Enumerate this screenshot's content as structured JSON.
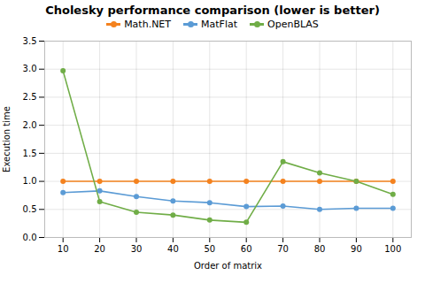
{
  "chart_data": {
    "type": "line",
    "title": "Cholesky performance comparison (lower is better)",
    "xlabel": "Order of matrix",
    "ylabel": "Execution time",
    "x": [
      10,
      20,
      30,
      40,
      50,
      60,
      70,
      80,
      90,
      100
    ],
    "series": [
      {
        "name": "Math.NET",
        "color": "#f4821e",
        "marker": "circle",
        "values": [
          1.0,
          1.0,
          1.0,
          1.0,
          1.0,
          1.0,
          1.0,
          1.0,
          1.0,
          1.0
        ]
      },
      {
        "name": "MatFlat",
        "color": "#5b9bd5",
        "marker": "circle",
        "values": [
          0.8,
          0.83,
          0.73,
          0.65,
          0.62,
          0.55,
          0.56,
          0.5,
          0.52,
          0.52
        ]
      },
      {
        "name": "OpenBLAS",
        "color": "#70ad47",
        "marker": "circle",
        "values": [
          2.97,
          0.64,
          0.45,
          0.4,
          0.31,
          0.27,
          1.35,
          1.15,
          1.0,
          0.77
        ]
      }
    ],
    "xlim": [
      5,
      105
    ],
    "xticks": [
      10,
      20,
      30,
      40,
      50,
      60,
      70,
      80,
      90,
      100
    ],
    "ylim": [
      0,
      3.5
    ],
    "yticks": [
      {
        "value": 0,
        "label": "0.0"
      },
      0.5,
      {
        "value": 1,
        "label": "1.0"
      },
      1.5,
      {
        "value": 2,
        "label": "2.0"
      },
      2.5,
      {
        "value": 3,
        "label": "3.0"
      },
      3.5
    ],
    "grid": true,
    "legend": "top"
  }
}
